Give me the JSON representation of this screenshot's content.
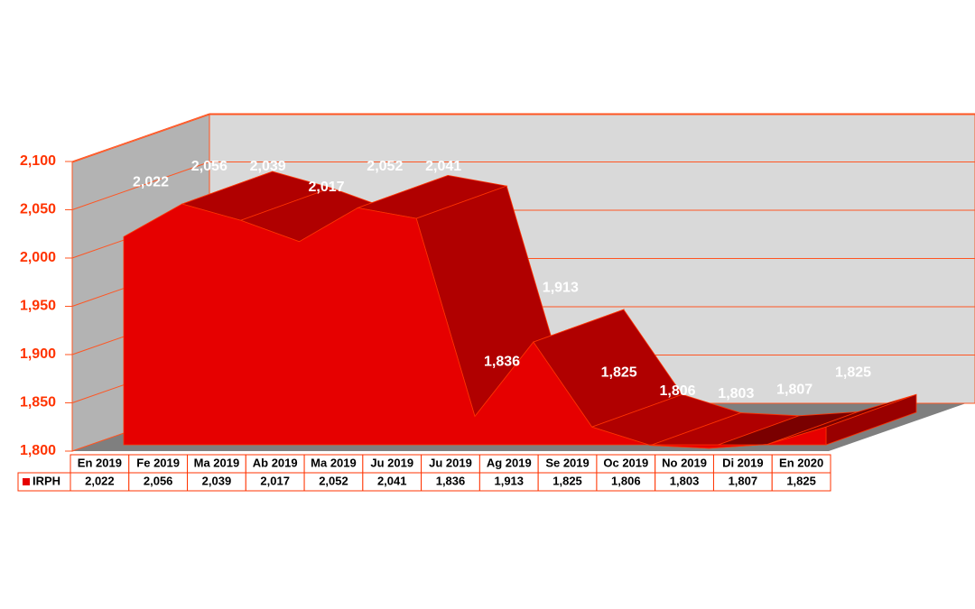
{
  "chart_data": {
    "type": "area3d",
    "categories": [
      "En 2019",
      "Fe 2019",
      "Ma 2019",
      "Ab 2019",
      "Ma 2019",
      "Ju 2019",
      "Ju 2019",
      "Ag 2019",
      "Se 2019",
      "Oc 2019",
      "No 2019",
      "Di 2019",
      "En 2020"
    ],
    "series": [
      {
        "name": "IRPH",
        "color": "#e60000",
        "values": [
          2022,
          2056,
          2039,
          2017,
          2052,
          2041,
          1836,
          1913,
          1825,
          1806,
          1803,
          1807,
          1825
        ],
        "value_labels": [
          "2,022",
          "2,056",
          "2,039",
          "2,017",
          "2,052",
          "2,041",
          "1,836",
          "1,913",
          "1,825",
          "1,806",
          "1,803",
          "1,807",
          "1,825"
        ]
      }
    ],
    "ylim": [
      1800,
      2100
    ],
    "yticks": [
      {
        "value": 1800,
        "label": "1,800"
      },
      {
        "value": 1850,
        "label": "1,850"
      },
      {
        "value": 1900,
        "label": "1,900"
      },
      {
        "value": 1950,
        "label": "1,950"
      },
      {
        "value": 2000,
        "label": "2,000"
      },
      {
        "value": 2050,
        "label": "2,050"
      },
      {
        "value": 2100,
        "label": "2,100"
      }
    ],
    "grid": true
  }
}
